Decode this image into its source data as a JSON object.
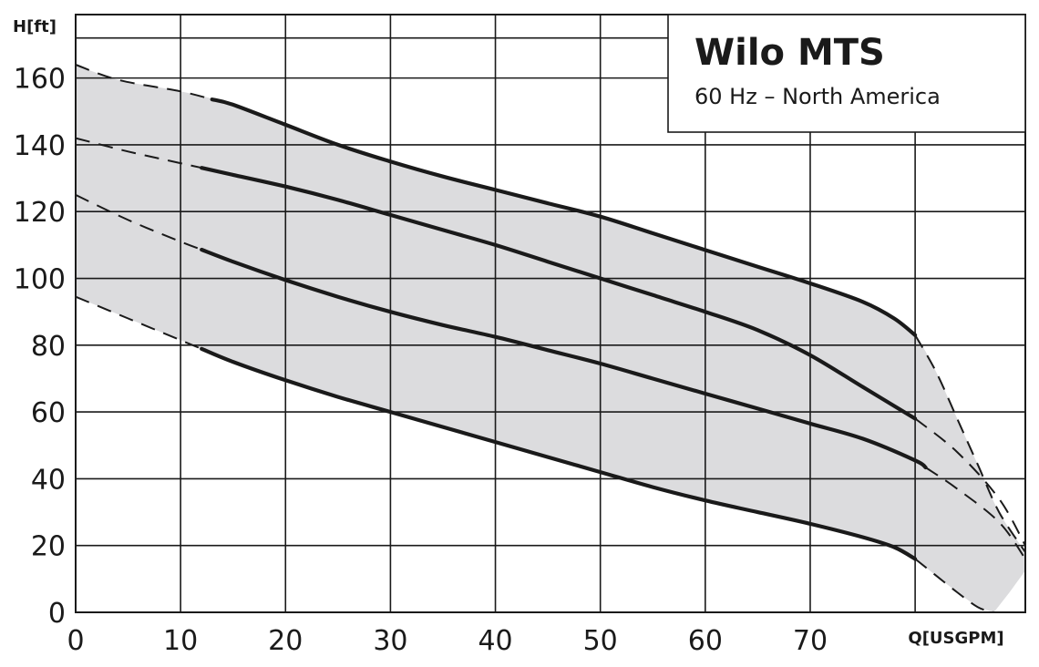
{
  "chart_data": {
    "type": "line",
    "title": "Wilo MTS",
    "subtitle": "60 Hz – North America",
    "ylabel": "H[ft]",
    "xlabel": "Q[USGPM]",
    "xlim": [
      0,
      90.5
    ],
    "ylim": [
      0,
      179
    ],
    "x_ticks": [
      0,
      10,
      20,
      30,
      40,
      50,
      60,
      70
    ],
    "y_ticks": [
      0,
      20,
      40,
      60,
      80,
      100,
      120,
      140,
      160
    ],
    "grid": true,
    "legend": "none",
    "colors": {
      "band": "#dcdcde",
      "line": "#1a1a1a",
      "grid": "#1a1a1a",
      "background": "#ffffff"
    },
    "band": {
      "upper": [
        [
          0,
          164
        ],
        [
          4,
          159.5
        ],
        [
          10,
          156
        ],
        [
          15,
          152
        ],
        [
          20,
          146
        ],
        [
          25,
          140
        ],
        [
          30,
          135
        ],
        [
          35,
          130.5
        ],
        [
          40,
          126.5
        ],
        [
          45,
          122.5
        ],
        [
          50,
          118.5
        ],
        [
          55,
          113.5
        ],
        [
          60,
          108.5
        ],
        [
          65,
          103.5
        ],
        [
          70,
          98.5
        ],
        [
          75,
          93
        ],
        [
          78,
          88
        ],
        [
          80,
          83
        ],
        [
          82,
          72
        ],
        [
          84,
          58
        ],
        [
          86,
          44
        ],
        [
          88,
          30
        ],
        [
          90.5,
          18
        ]
      ],
      "lower": [
        [
          0,
          94.5
        ],
        [
          5,
          88
        ],
        [
          10,
          81.5
        ],
        [
          15,
          75
        ],
        [
          20,
          69.5
        ],
        [
          25,
          64.5
        ],
        [
          30,
          60
        ],
        [
          35,
          55.5
        ],
        [
          40,
          51
        ],
        [
          45,
          46.5
        ],
        [
          50,
          42
        ],
        [
          55,
          37.5
        ],
        [
          60,
          33.5
        ],
        [
          65,
          30
        ],
        [
          70,
          26.5
        ],
        [
          75,
          22.5
        ],
        [
          78,
          19.5
        ],
        [
          80,
          16
        ],
        [
          82,
          11
        ],
        [
          84,
          6
        ],
        [
          86,
          1.5
        ],
        [
          87.5,
          0
        ],
        [
          89,
          6
        ],
        [
          90.5,
          12.5
        ]
      ]
    },
    "series": [
      {
        "values": [
          [
            0,
            164
          ],
          [
            4,
            159.5
          ],
          [
            10,
            156
          ],
          [
            15,
            152
          ],
          [
            20,
            146
          ],
          [
            25,
            140
          ],
          [
            30,
            135
          ],
          [
            35,
            130.5
          ],
          [
            40,
            126.5
          ],
          [
            45,
            122.5
          ],
          [
            50,
            118.5
          ],
          [
            55,
            113.5
          ],
          [
            60,
            108.5
          ],
          [
            65,
            103.5
          ],
          [
            70,
            98.5
          ],
          [
            75,
            93
          ],
          [
            78,
            88
          ],
          [
            80,
            83
          ],
          [
            82,
            72
          ],
          [
            84,
            58
          ],
          [
            86,
            44
          ],
          [
            88,
            30
          ],
          [
            90.5,
            18
          ]
        ],
        "solid_range": [
          13,
          80
        ]
      },
      {
        "values": [
          [
            0,
            142
          ],
          [
            5,
            138
          ],
          [
            10,
            134.5
          ],
          [
            15,
            131
          ],
          [
            20,
            127.5
          ],
          [
            25,
            123.5
          ],
          [
            30,
            119
          ],
          [
            35,
            114.5
          ],
          [
            40,
            110
          ],
          [
            45,
            105
          ],
          [
            50,
            100
          ],
          [
            55,
            95
          ],
          [
            60,
            90
          ],
          [
            65,
            84.5
          ],
          [
            70,
            77
          ],
          [
            75,
            67.5
          ],
          [
            80,
            58
          ],
          [
            84,
            48
          ],
          [
            88,
            34
          ],
          [
            90.5,
            20
          ]
        ],
        "solid_range": [
          12,
          80
        ]
      },
      {
        "values": [
          [
            0,
            125
          ],
          [
            5,
            117.5
          ],
          [
            10,
            111
          ],
          [
            15,
            105
          ],
          [
            20,
            99.5
          ],
          [
            25,
            94.5
          ],
          [
            30,
            90
          ],
          [
            35,
            86
          ],
          [
            40,
            82.5
          ],
          [
            45,
            78.5
          ],
          [
            50,
            74.5
          ],
          [
            55,
            70
          ],
          [
            60,
            65.5
          ],
          [
            65,
            61
          ],
          [
            70,
            56.5
          ],
          [
            75,
            52
          ],
          [
            80,
            45.5
          ],
          [
            84,
            37
          ],
          [
            88,
            27
          ],
          [
            90.5,
            16
          ]
        ],
        "solid_range": [
          12,
          81
        ]
      },
      {
        "values": [
          [
            0,
            94.5
          ],
          [
            5,
            88
          ],
          [
            10,
            81.5
          ],
          [
            15,
            75
          ],
          [
            20,
            69.5
          ],
          [
            25,
            64.5
          ],
          [
            30,
            60
          ],
          [
            35,
            55.5
          ],
          [
            40,
            51
          ],
          [
            45,
            46.5
          ],
          [
            50,
            42
          ],
          [
            55,
            37.5
          ],
          [
            60,
            33.5
          ],
          [
            65,
            30
          ],
          [
            70,
            26.5
          ],
          [
            75,
            22.5
          ],
          [
            78,
            19.5
          ],
          [
            80,
            16
          ],
          [
            82,
            11
          ],
          [
            84,
            6
          ],
          [
            86,
            1.5
          ],
          [
            87.5,
            0
          ]
        ],
        "solid_range": [
          12,
          80
        ]
      }
    ]
  }
}
